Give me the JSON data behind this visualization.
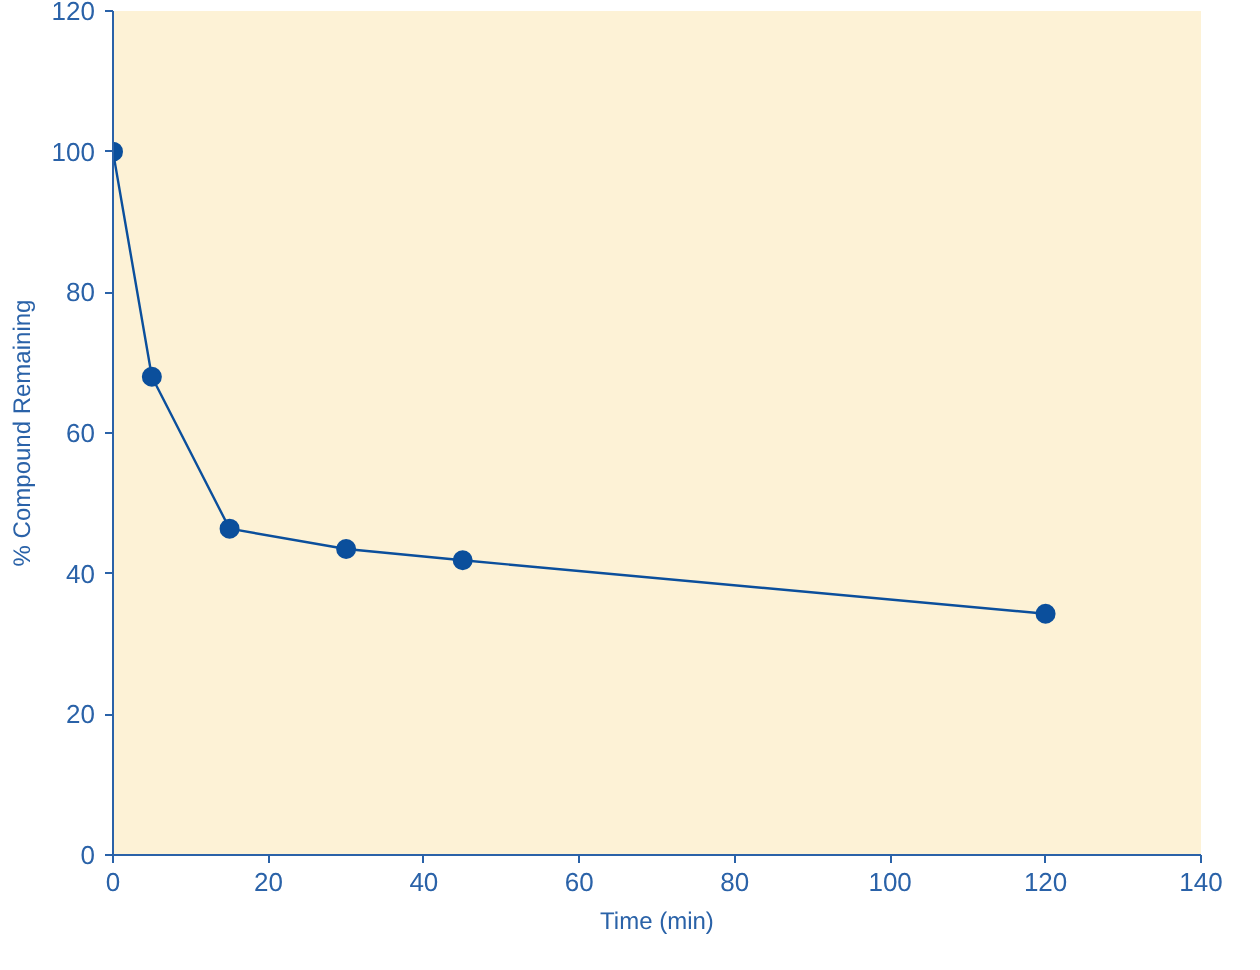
{
  "chart_data": {
    "type": "line",
    "xlabel": "Time (min)",
    "ylabel": "% Compound Remaining",
    "x": [
      0,
      5,
      15,
      30,
      45,
      120
    ],
    "series": [
      {
        "color": "#0b4f9c",
        "values": [
          100,
          68,
          46.4,
          43.5,
          41.9,
          34.3
        ]
      }
    ],
    "xlim": [
      0,
      140
    ],
    "xticks": [
      0,
      20,
      40,
      60,
      80,
      100,
      120,
      140
    ],
    "ylim": [
      0,
      120
    ],
    "yticks": [
      0,
      20,
      40,
      60,
      80,
      100,
      120
    ],
    "grid": false,
    "marker": "circle",
    "line_style": "solid"
  }
}
